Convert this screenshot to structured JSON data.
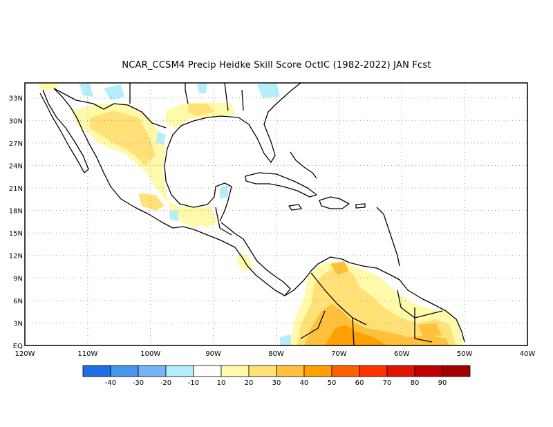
{
  "title": "NCAR_CCSM4 Precip Heidke Skill Score OctIC (1982-2022) JAN Fcst",
  "map": {
    "lon_range": [
      -120,
      -40
    ],
    "lat_range": [
      0,
      35
    ],
    "y_ticks": [
      "EQ",
      "3N",
      "6N",
      "9N",
      "12N",
      "15N",
      "18N",
      "21N",
      "24N",
      "27N",
      "30N",
      "33N"
    ],
    "x_ticks": [
      "120W",
      "110W",
      "100W",
      "90W",
      "80W",
      "70W",
      "60W",
      "50W",
      "40W"
    ],
    "grid": "dotted"
  },
  "colorbar": {
    "colors": [
      "#1e6ee6",
      "#4696ee",
      "#78b4f5",
      "#b4eefa",
      "#ffffff",
      "#fffaaa",
      "#ffe178",
      "#ffc03c",
      "#ffa000",
      "#ff6000",
      "#ff3200",
      "#e11400",
      "#c00000",
      "#a50000"
    ],
    "labels": [
      "-40",
      "-30",
      "-20",
      "-10",
      "10",
      "20",
      "30",
      "40",
      "50",
      "60",
      "70",
      "80",
      "90"
    ]
  },
  "colors": {
    "coast": "#000000",
    "grid": "#9a9a9a"
  }
}
